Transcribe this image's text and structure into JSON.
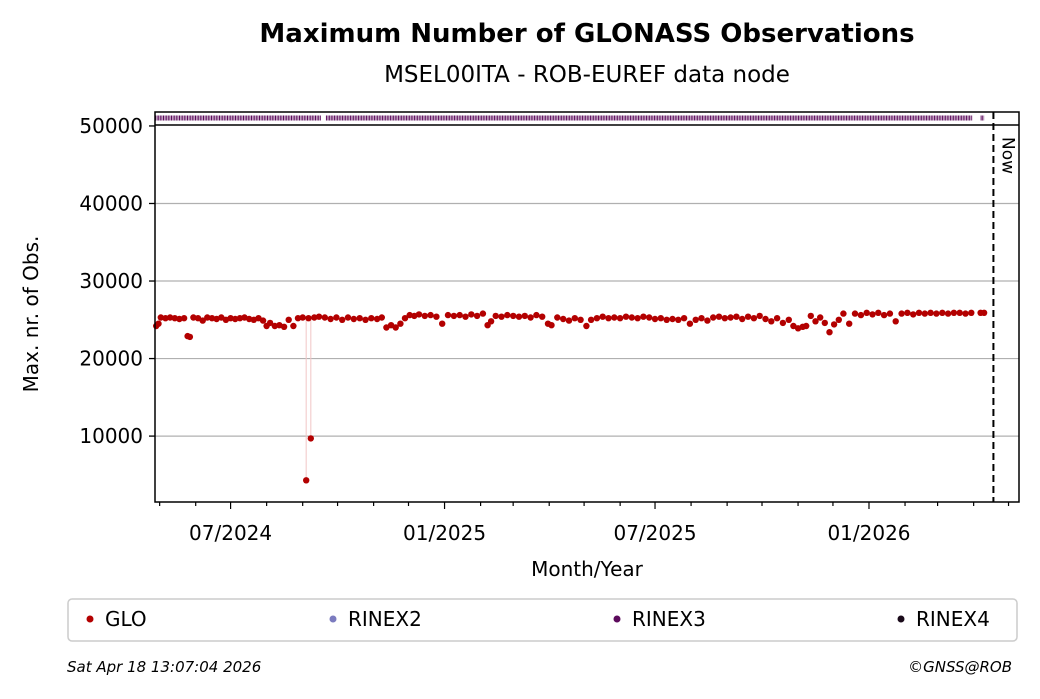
{
  "chart_data": {
    "type": "scatter",
    "title": "Maximum Number of GLONASS Observations",
    "subtitle": "MSEL00ITA - ROB-EUREF data node",
    "xlabel": "Month/Year",
    "ylabel": "Max. nr. of Obs.",
    "x_range": [
      "2024-04-27",
      "2026-05-10"
    ],
    "ylim": [
      1500,
      51800
    ],
    "y_ticks": [
      10000,
      20000,
      30000,
      40000,
      50000
    ],
    "x_ticks": [
      {
        "date": "2024-07-01",
        "label": "07/2024"
      },
      {
        "date": "2025-01-01",
        "label": "01/2025"
      },
      {
        "date": "2025-07-01",
        "label": "07/2025"
      },
      {
        "date": "2026-01-01",
        "label": "01/2026"
      }
    ],
    "now_marker": {
      "date": "2026-04-18",
      "label": "Now"
    },
    "grid": "y",
    "series": [
      {
        "name": "GLO",
        "color": "#b30000",
        "points": [
          [
            "2024-04-28",
            24200
          ],
          [
            "2024-04-30",
            24500
          ],
          [
            "2024-05-02",
            25300
          ],
          [
            "2024-05-06",
            25200
          ],
          [
            "2024-05-10",
            25300
          ],
          [
            "2024-05-14",
            25200
          ],
          [
            "2024-05-18",
            25100
          ],
          [
            "2024-05-22",
            25200
          ],
          [
            "2024-05-25",
            22900
          ],
          [
            "2024-05-27",
            22800
          ],
          [
            "2024-05-30",
            25300
          ],
          [
            "2024-06-03",
            25200
          ],
          [
            "2024-06-07",
            24900
          ],
          [
            "2024-06-11",
            25300
          ],
          [
            "2024-06-15",
            25200
          ],
          [
            "2024-06-19",
            25100
          ],
          [
            "2024-06-23",
            25300
          ],
          [
            "2024-06-27",
            25000
          ],
          [
            "2024-07-01",
            25200
          ],
          [
            "2024-07-05",
            25100
          ],
          [
            "2024-07-09",
            25200
          ],
          [
            "2024-07-13",
            25300
          ],
          [
            "2024-07-17",
            25100
          ],
          [
            "2024-07-21",
            25000
          ],
          [
            "2024-07-25",
            25200
          ],
          [
            "2024-07-29",
            24900
          ],
          [
            "2024-08-01",
            24200
          ],
          [
            "2024-08-04",
            24600
          ],
          [
            "2024-08-08",
            24200
          ],
          [
            "2024-08-12",
            24300
          ],
          [
            "2024-08-16",
            24100
          ],
          [
            "2024-08-20",
            25000
          ],
          [
            "2024-08-24",
            24200
          ],
          [
            "2024-08-28",
            25200
          ],
          [
            "2024-09-01",
            25300
          ],
          [
            "2024-09-04",
            4300
          ],
          [
            "2024-09-06",
            25200
          ],
          [
            "2024-09-08",
            9700
          ],
          [
            "2024-09-11",
            25300
          ],
          [
            "2024-09-15",
            25400
          ],
          [
            "2024-09-20",
            25300
          ],
          [
            "2024-09-25",
            25100
          ],
          [
            "2024-09-30",
            25300
          ],
          [
            "2024-10-05",
            25000
          ],
          [
            "2024-10-10",
            25300
          ],
          [
            "2024-10-15",
            25100
          ],
          [
            "2024-10-20",
            25200
          ],
          [
            "2024-10-25",
            25000
          ],
          [
            "2024-10-30",
            25200
          ],
          [
            "2024-11-04",
            25100
          ],
          [
            "2024-11-08",
            25300
          ],
          [
            "2024-11-12",
            24000
          ],
          [
            "2024-11-16",
            24300
          ],
          [
            "2024-11-20",
            24000
          ],
          [
            "2024-11-24",
            24500
          ],
          [
            "2024-11-28",
            25200
          ],
          [
            "2024-12-02",
            25600
          ],
          [
            "2024-12-06",
            25500
          ],
          [
            "2024-12-10",
            25700
          ],
          [
            "2024-12-15",
            25500
          ],
          [
            "2024-12-20",
            25600
          ],
          [
            "2024-12-25",
            25400
          ],
          [
            "2024-12-30",
            24500
          ],
          [
            "2025-01-04",
            25600
          ],
          [
            "2025-01-09",
            25500
          ],
          [
            "2025-01-14",
            25600
          ],
          [
            "2025-01-19",
            25400
          ],
          [
            "2025-01-24",
            25700
          ],
          [
            "2025-01-29",
            25500
          ],
          [
            "2025-02-03",
            25800
          ],
          [
            "2025-02-07",
            24300
          ],
          [
            "2025-02-10",
            24800
          ],
          [
            "2025-02-14",
            25500
          ],
          [
            "2025-02-19",
            25400
          ],
          [
            "2025-02-24",
            25600
          ],
          [
            "2025-03-01",
            25500
          ],
          [
            "2025-03-06",
            25400
          ],
          [
            "2025-03-11",
            25500
          ],
          [
            "2025-03-16",
            25300
          ],
          [
            "2025-03-21",
            25600
          ],
          [
            "2025-03-26",
            25400
          ],
          [
            "2025-03-31",
            24500
          ],
          [
            "2025-04-03",
            24300
          ],
          [
            "2025-04-08",
            25300
          ],
          [
            "2025-04-13",
            25100
          ],
          [
            "2025-04-18",
            24900
          ],
          [
            "2025-04-23",
            25200
          ],
          [
            "2025-04-28",
            25000
          ],
          [
            "2025-05-03",
            24200
          ],
          [
            "2025-05-07",
            25000
          ],
          [
            "2025-05-12",
            25200
          ],
          [
            "2025-05-17",
            25400
          ],
          [
            "2025-05-22",
            25200
          ],
          [
            "2025-05-27",
            25300
          ],
          [
            "2025-06-01",
            25200
          ],
          [
            "2025-06-06",
            25400
          ],
          [
            "2025-06-11",
            25300
          ],
          [
            "2025-06-16",
            25200
          ],
          [
            "2025-06-21",
            25400
          ],
          [
            "2025-06-26",
            25300
          ],
          [
            "2025-07-01",
            25100
          ],
          [
            "2025-07-06",
            25200
          ],
          [
            "2025-07-11",
            25000
          ],
          [
            "2025-07-16",
            25100
          ],
          [
            "2025-07-21",
            25000
          ],
          [
            "2025-07-26",
            25200
          ],
          [
            "2025-07-31",
            24500
          ],
          [
            "2025-08-05",
            25000
          ],
          [
            "2025-08-10",
            25200
          ],
          [
            "2025-08-15",
            24900
          ],
          [
            "2025-08-20",
            25300
          ],
          [
            "2025-08-25",
            25400
          ],
          [
            "2025-08-30",
            25200
          ],
          [
            "2025-09-04",
            25300
          ],
          [
            "2025-09-09",
            25400
          ],
          [
            "2025-09-14",
            25100
          ],
          [
            "2025-09-19",
            25400
          ],
          [
            "2025-09-24",
            25200
          ],
          [
            "2025-09-29",
            25500
          ],
          [
            "2025-10-04",
            25100
          ],
          [
            "2025-10-09",
            24800
          ],
          [
            "2025-10-14",
            25200
          ],
          [
            "2025-10-19",
            24600
          ],
          [
            "2025-10-24",
            25000
          ],
          [
            "2025-10-28",
            24200
          ],
          [
            "2025-11-01",
            23900
          ],
          [
            "2025-11-05",
            24100
          ],
          [
            "2025-11-08",
            24200
          ],
          [
            "2025-11-12",
            25500
          ],
          [
            "2025-11-16",
            24800
          ],
          [
            "2025-11-20",
            25300
          ],
          [
            "2025-11-24",
            24600
          ],
          [
            "2025-11-28",
            23400
          ],
          [
            "2025-12-02",
            24400
          ],
          [
            "2025-12-06",
            25000
          ],
          [
            "2025-12-10",
            25800
          ],
          [
            "2025-12-15",
            24500
          ],
          [
            "2025-12-20",
            25800
          ],
          [
            "2025-12-25",
            25600
          ],
          [
            "2025-12-30",
            25900
          ],
          [
            "2026-01-04",
            25700
          ],
          [
            "2026-01-09",
            25900
          ],
          [
            "2026-01-14",
            25600
          ],
          [
            "2026-01-19",
            25800
          ],
          [
            "2026-01-24",
            24800
          ],
          [
            "2026-01-29",
            25800
          ],
          [
            "2026-02-03",
            25900
          ],
          [
            "2026-02-08",
            25700
          ],
          [
            "2026-02-13",
            25900
          ],
          [
            "2026-02-18",
            25800
          ],
          [
            "2026-02-23",
            25900
          ],
          [
            "2026-02-28",
            25800
          ],
          [
            "2026-03-05",
            25900
          ],
          [
            "2026-03-10",
            25800
          ],
          [
            "2026-03-15",
            25900
          ],
          [
            "2026-03-20",
            25900
          ],
          [
            "2026-03-25",
            25800
          ],
          [
            "2026-03-30",
            25900
          ],
          [
            "2026-04-07",
            25900
          ],
          [
            "2026-04-10",
            25900
          ]
        ]
      },
      {
        "name": "RINEX2",
        "color": "#7b7bbf",
        "points": []
      },
      {
        "name": "RINEX3",
        "color": "#5c0a5c",
        "y_value": 51000,
        "ranges": [
          [
            "2024-04-27",
            "2024-09-17"
          ],
          [
            "2024-09-21",
            "2026-03-31"
          ],
          [
            "2026-04-07",
            "2026-04-10"
          ]
        ]
      },
      {
        "name": "RINEX4",
        "color": "#1a0a1a",
        "points": []
      }
    ],
    "legend_position": "bottom",
    "legend": [
      "GLO",
      "RINEX2",
      "RINEX3",
      "RINEX4"
    ]
  },
  "footer": {
    "timestamp": "Sat Apr 18 13:07:04 2026",
    "credit": "©GNSS@ROB"
  }
}
